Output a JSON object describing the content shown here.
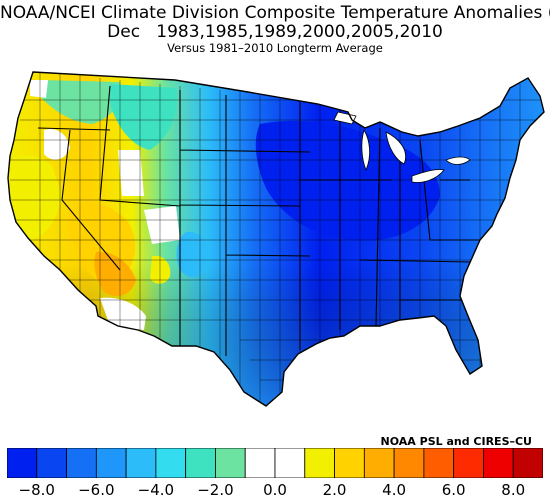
{
  "title_line1": "NOAA/NCEI Climate Division Composite Temperature Anomalies (F)",
  "title_line2": "Dec   1983,1985,1989,2000,2005,2010",
  "title_line3": "Versus 1981–2010 Longterm Average",
  "credit": "NOAA PSL and CIRES–CU",
  "colorbar": {
    "colors": [
      "#0020f0",
      "#0a45f2",
      "#1670f6",
      "#1f96f9",
      "#2cbcf9",
      "#33dcef",
      "#3ee2c1",
      "#6ce3a0",
      "#ffffff",
      "#ffffff",
      "#f2f000",
      "#ffd200",
      "#ffad00",
      "#ff8800",
      "#ff5d00",
      "#ff2b00",
      "#ee0000",
      "#c10000"
    ],
    "ticks": [
      "-8.0",
      "-6.0",
      "-4.0",
      "-2.0",
      "0.0",
      "2.0",
      "4.0",
      "6.0",
      "8.0"
    ]
  },
  "map": {
    "lakes_color": "#ffffff",
    "border_color": "#000000"
  }
}
